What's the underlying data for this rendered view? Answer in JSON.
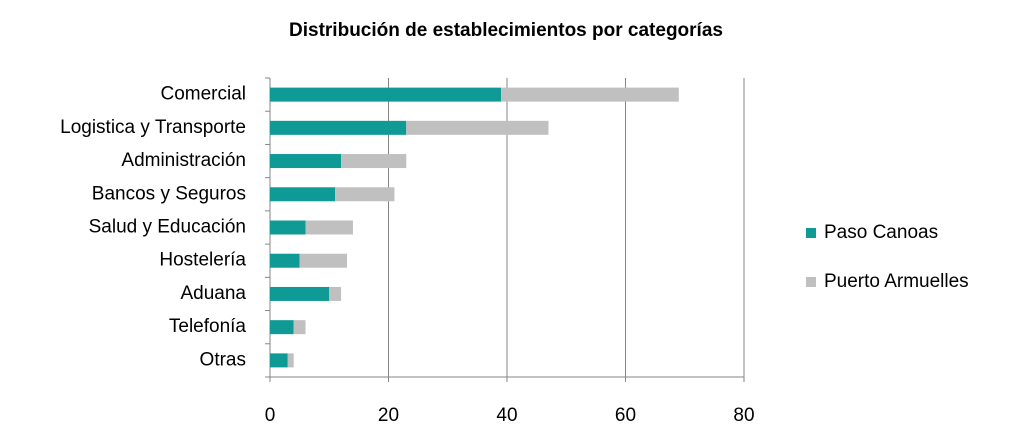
{
  "chart_data": {
    "type": "stacked_barh",
    "title": "Distribución de establecimientos por categorías",
    "categories": [
      "Comercial",
      "Logistica y Transporte",
      "Administración",
      "Bancos y Seguros",
      "Salud y Educación",
      "Hostelería",
      "Aduana",
      "Telefonía",
      "Otras"
    ],
    "series": [
      {
        "name": "Paso Canoas",
        "color": "#0f9a96",
        "values": [
          39,
          23,
          12,
          11,
          6,
          5,
          10,
          4,
          3
        ]
      },
      {
        "name": "Puerto Armuelles",
        "color": "#c0c0c0",
        "values": [
          30,
          24,
          11,
          10,
          8,
          8,
          2,
          2,
          1
        ]
      }
    ],
    "xlim": [
      0,
      80
    ],
    "xticks": [
      0,
      20,
      40,
      60,
      80
    ],
    "grid": true,
    "legend": "right"
  }
}
